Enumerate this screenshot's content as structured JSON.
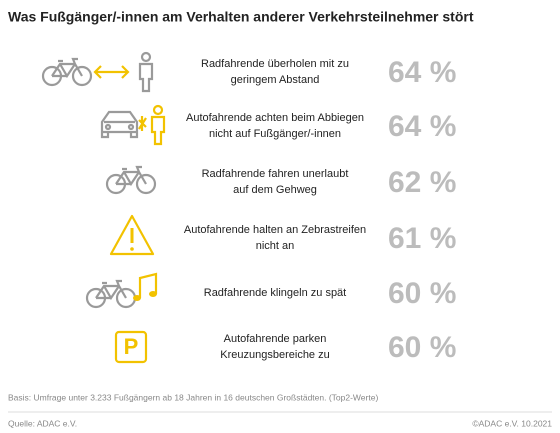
{
  "title": "Was Fußgänger/-innen am Verhalten anderer Verkehrsteilnehmer stört",
  "items": [
    {
      "label": [
        "Radfahrende überholen mit zu",
        "geringem Abstand"
      ],
      "value": "64 %"
    },
    {
      "label": [
        "Autofahrende achten beim Abbiegen",
        "nicht auf Fußgänger/-innen"
      ],
      "value": "64 %"
    },
    {
      "label": [
        "Radfahrende fahren unerlaubt",
        "auf dem Gehweg"
      ],
      "value": "62 %"
    },
    {
      "label": [
        "Autofahrende halten an Zebrastreifen",
        "nicht an"
      ],
      "value": "61 %"
    },
    {
      "label": [
        "Radfahrende klingeln zu spät"
      ],
      "value": "60 %"
    },
    {
      "label": [
        "Autofahrende parken",
        "Kreuzungsbereiche zu"
      ],
      "value": "60 %"
    }
  ],
  "footnote": "Basis: Umfrage unter 3.233 Fußgängern ab 18 Jahren in 16 deutschen Großstädten. (Top2-Werte)",
  "source": "Quelle: ADAC e.V.",
  "credit": "©ADAC e.V.  10.2021"
}
